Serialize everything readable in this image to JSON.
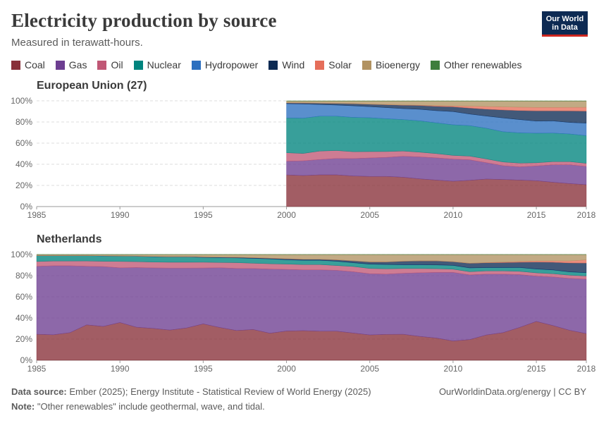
{
  "header": {
    "title": "Electricity production by source",
    "subtitle": "Measured in terawatt-hours.",
    "logo_line1": "Our World",
    "logo_line2": "in Data"
  },
  "legend": [
    {
      "label": "Coal",
      "color": "#883039"
    },
    {
      "label": "Gas",
      "color": "#6d3e91"
    },
    {
      "label": "Oil",
      "color": "#c05775"
    },
    {
      "label": "Nuclear",
      "color": "#00847e"
    },
    {
      "label": "Hydropower",
      "color": "#2c6fbf"
    },
    {
      "label": "Wind",
      "color": "#0d2a53"
    },
    {
      "label": "Solar",
      "color": "#e56e5a"
    },
    {
      "label": "Bioenergy",
      "color": "#b19261"
    },
    {
      "label": "Other renewables",
      "color": "#3e7e3c"
    }
  ],
  "footer": {
    "source_label": "Data source:",
    "source_text": "Ember (2025); Energy Institute - Statistical Review of World Energy (2025)",
    "note_label": "Note:",
    "note_text": "\"Other renewables\" include geothermal, wave, and tidal.",
    "attribution": "OurWorldinData.org/energy | CC BY"
  },
  "chart_data": [
    {
      "type": "area",
      "stacked": "percent",
      "title": "European Union (27)",
      "xlim": [
        1985,
        2018
      ],
      "ylim": [
        0,
        100
      ],
      "y_ticks": [
        "0%",
        "20%",
        "40%",
        "60%",
        "80%",
        "100%"
      ],
      "x_ticks": [
        "1985",
        "1990",
        "1995",
        "2000",
        "2005",
        "2010",
        "2015",
        "2018"
      ],
      "grid": true,
      "x": [
        2000,
        2001,
        2002,
        2003,
        2004,
        2005,
        2006,
        2007,
        2008,
        2009,
        2010,
        2011,
        2012,
        2013,
        2014,
        2015,
        2016,
        2017,
        2018
      ],
      "series": [
        {
          "name": "Coal",
          "values": [
            30,
            29.5,
            30,
            30,
            29,
            28.5,
            28.5,
            28,
            26.5,
            25,
            24,
            25,
            26,
            25.5,
            25,
            24.5,
            23,
            22,
            21
          ]
        },
        {
          "name": "Gas",
          "values": [
            13,
            14,
            14.5,
            15.5,
            16.5,
            17.5,
            18,
            20,
            21,
            21,
            21,
            19.5,
            15.5,
            13,
            12.5,
            14,
            16.5,
            18,
            17.5
          ]
        },
        {
          "name": "Oil",
          "values": [
            8,
            7,
            8,
            7.5,
            6.5,
            6,
            5.5,
            5,
            4.5,
            4,
            3.5,
            3.5,
            3.5,
            3.5,
            3.5,
            3,
            3,
            3,
            3
          ]
        },
        {
          "name": "Nuclear",
          "values": [
            33,
            33.5,
            33,
            32.5,
            32.5,
            32,
            31,
            30,
            30,
            29,
            29,
            29,
            29,
            28.5,
            28.5,
            28,
            27,
            26.5,
            26.5
          ]
        },
        {
          "name": "Hydropower",
          "values": [
            13.5,
            13.5,
            11,
            10.5,
            11,
            10.5,
            10.5,
            10.5,
            11,
            11.5,
            12.5,
            11,
            11.5,
            13,
            12.5,
            11.5,
            11.5,
            11,
            12
          ]
        },
        {
          "name": "Wind",
          "values": [
            0.8,
            1,
            1.3,
            1.6,
            2,
            2.3,
            2.7,
            3.2,
            3.6,
            4.1,
            4.5,
            5.7,
            6.5,
            7.5,
            8.5,
            9.7,
            9.5,
            11,
            11.5
          ]
        },
        {
          "name": "Solar",
          "values": [
            0,
            0,
            0,
            0,
            0,
            0,
            0.1,
            0.2,
            0.3,
            0.6,
            0.9,
            1.8,
            2.5,
            2.9,
            3.2,
            3.3,
            3.3,
            3.5,
            3.7
          ]
        },
        {
          "name": "Bioenergy",
          "values": [
            1.7,
            1.8,
            2,
            2.2,
            2.5,
            3,
            3.4,
            3.8,
            4,
            4.4,
            4.6,
            4.9,
            5.2,
            5.5,
            5.8,
            6,
            6,
            6,
            6
          ]
        },
        {
          "name": "Other renewables",
          "values": [
            0.2,
            0.2,
            0.2,
            0.2,
            0.2,
            0.2,
            0.2,
            0.2,
            0.2,
            0.2,
            0.2,
            0.2,
            0.2,
            0.2,
            0.2,
            0.2,
            0.2,
            0.2,
            0.2
          ]
        }
      ]
    },
    {
      "type": "area",
      "stacked": "percent",
      "title": "Netherlands",
      "xlim": [
        1985,
        2018
      ],
      "ylim": [
        0,
        100
      ],
      "y_ticks": [
        "0%",
        "20%",
        "40%",
        "60%",
        "80%",
        "100%"
      ],
      "x_ticks": [
        "1985",
        "1990",
        "1995",
        "2000",
        "2005",
        "2010",
        "2015",
        "2018"
      ],
      "grid": true,
      "x": [
        1985,
        1986,
        1987,
        1988,
        1989,
        1990,
        1991,
        1992,
        1993,
        1994,
        1995,
        1996,
        1997,
        1998,
        1999,
        2000,
        2001,
        2002,
        2003,
        2004,
        2005,
        2006,
        2007,
        2008,
        2009,
        2010,
        2011,
        2012,
        2013,
        2014,
        2015,
        2016,
        2017,
        2018
      ],
      "series": [
        {
          "name": "Coal",
          "values": [
            24.5,
            24,
            26,
            33.5,
            32,
            35.5,
            31,
            30,
            28.5,
            30.5,
            34.5,
            31,
            28.5,
            29,
            25.5,
            27.5,
            28,
            27.5,
            27.5,
            26,
            24,
            24.5,
            24.5,
            22.5,
            21,
            18,
            19.5,
            23.5,
            25.5,
            30.5,
            36,
            32.5,
            28,
            25
          ]
        },
        {
          "name": "Gas",
          "values": [
            64,
            65,
            63,
            55.5,
            56.5,
            51.5,
            56,
            57,
            58.5,
            56.5,
            53,
            56.5,
            59.5,
            57.5,
            60.5,
            58,
            57.5,
            58,
            57.5,
            58.5,
            58,
            57,
            57.5,
            60,
            62,
            64,
            61,
            56.5,
            54,
            49,
            42,
            45.5,
            48.5,
            51
          ]
        },
        {
          "name": "Oil",
          "values": [
            4.5,
            4.5,
            4.5,
            5,
            5,
            6,
            5.5,
            5.5,
            5.5,
            5.5,
            5.5,
            5,
            5.5,
            5,
            5,
            5,
            5,
            5,
            4.5,
            5,
            5,
            5,
            4.5,
            4,
            3.5,
            3,
            3,
            3,
            3,
            3,
            3,
            3,
            3,
            3
          ]
        },
        {
          "name": "Nuclear",
          "values": [
            5.5,
            5,
            5,
            5,
            5,
            5,
            5,
            5,
            5,
            5,
            4.5,
            4.5,
            4.5,
            4.5,
            4.5,
            4,
            4,
            4,
            4,
            3.5,
            4,
            4,
            3.5,
            3.5,
            3.5,
            3.5,
            3.5,
            3,
            3,
            3.5,
            3.5,
            3.5,
            3,
            3
          ]
        },
        {
          "name": "Hydropower",
          "values": [
            0.1,
            0.1,
            0.1,
            0.1,
            0.1,
            0.1,
            0.1,
            0.1,
            0.1,
            0.1,
            0.1,
            0.1,
            0.1,
            0.1,
            0.1,
            0.1,
            0.1,
            0.1,
            0.1,
            0.1,
            0.1,
            0.1,
            0.1,
            0.1,
            0.1,
            0.1,
            0.1,
            0.1,
            0.1,
            0.1,
            0.1,
            0.1,
            0.1,
            0.1
          ]
        },
        {
          "name": "Wind",
          "values": [
            0,
            0,
            0,
            0,
            0.1,
            0.1,
            0.1,
            0.2,
            0.2,
            0.2,
            0.4,
            0.4,
            0.5,
            0.6,
            0.6,
            0.9,
            0.9,
            0.9,
            1.3,
            1.8,
            2.1,
            2.4,
            3.3,
            3.6,
            3.8,
            3.4,
            4.3,
            4.4,
            4.5,
            4.8,
            6.4,
            7.1,
            8.3,
            9
          ]
        },
        {
          "name": "Solar",
          "values": [
            0,
            0,
            0,
            0,
            0,
            0,
            0,
            0,
            0,
            0,
            0,
            0,
            0,
            0,
            0,
            0,
            0,
            0,
            0,
            0,
            0,
            0,
            0,
            0,
            0,
            0,
            0.1,
            0.2,
            0.5,
            0.7,
            1,
            1.3,
            1.9,
            3
          ]
        },
        {
          "name": "Bioenergy",
          "values": [
            1,
            1,
            1,
            1,
            1.2,
            1.3,
            1.5,
            1.8,
            2,
            2,
            2.3,
            2.5,
            2.7,
            3,
            3.5,
            4,
            4.5,
            4.5,
            5,
            6,
            7,
            7,
            6.3,
            6,
            6,
            6.7,
            8.2,
            7.5,
            7,
            6.5,
            6,
            6,
            6,
            5
          ]
        },
        {
          "name": "Other renewables",
          "values": [
            0,
            0,
            0,
            0,
            0,
            0,
            0,
            0,
            0,
            0,
            0,
            0,
            0,
            0,
            0,
            0,
            0,
            0,
            0,
            0,
            0,
            0,
            0,
            0,
            0,
            0,
            0,
            0,
            0,
            0,
            0,
            0,
            0,
            0
          ]
        }
      ]
    }
  ]
}
